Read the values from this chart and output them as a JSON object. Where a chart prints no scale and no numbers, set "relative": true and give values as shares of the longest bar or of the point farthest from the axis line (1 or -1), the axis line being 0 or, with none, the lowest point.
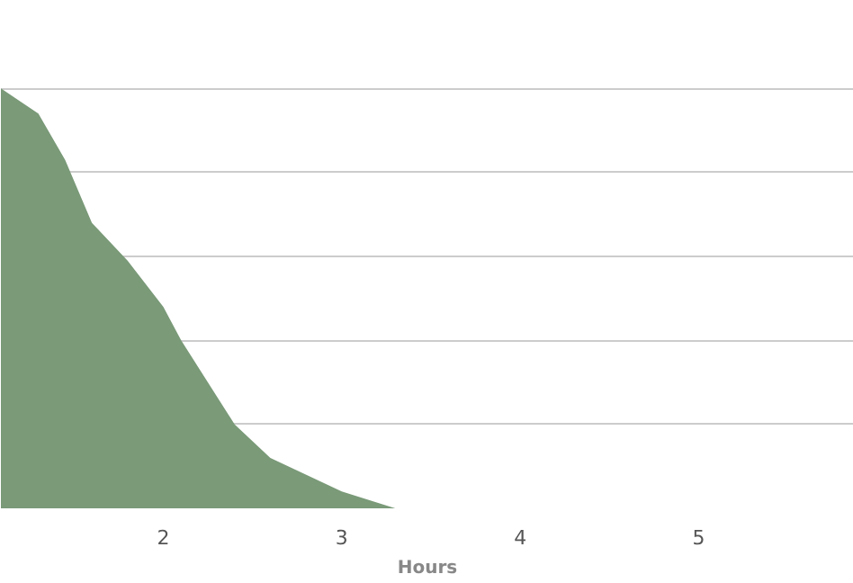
{
  "chart_data": {
    "type": "area",
    "relative": true,
    "xlabel": "Hours",
    "x": [
      1.09,
      1.3,
      1.45,
      1.6,
      1.8,
      2.0,
      2.1,
      2.4,
      2.6,
      3.0,
      3.3
    ],
    "series": [
      {
        "color": "#7a9a78",
        "values": [
          1,
          0.94,
          0.83,
          0.68,
          0.59,
          0.48,
          0.4,
          0.2,
          0.12,
          0.04,
          0
        ]
      }
    ],
    "xlim": [
      1.09,
      5.87
    ],
    "xticks": [
      2,
      3,
      4,
      5
    ],
    "grid": "y"
  }
}
